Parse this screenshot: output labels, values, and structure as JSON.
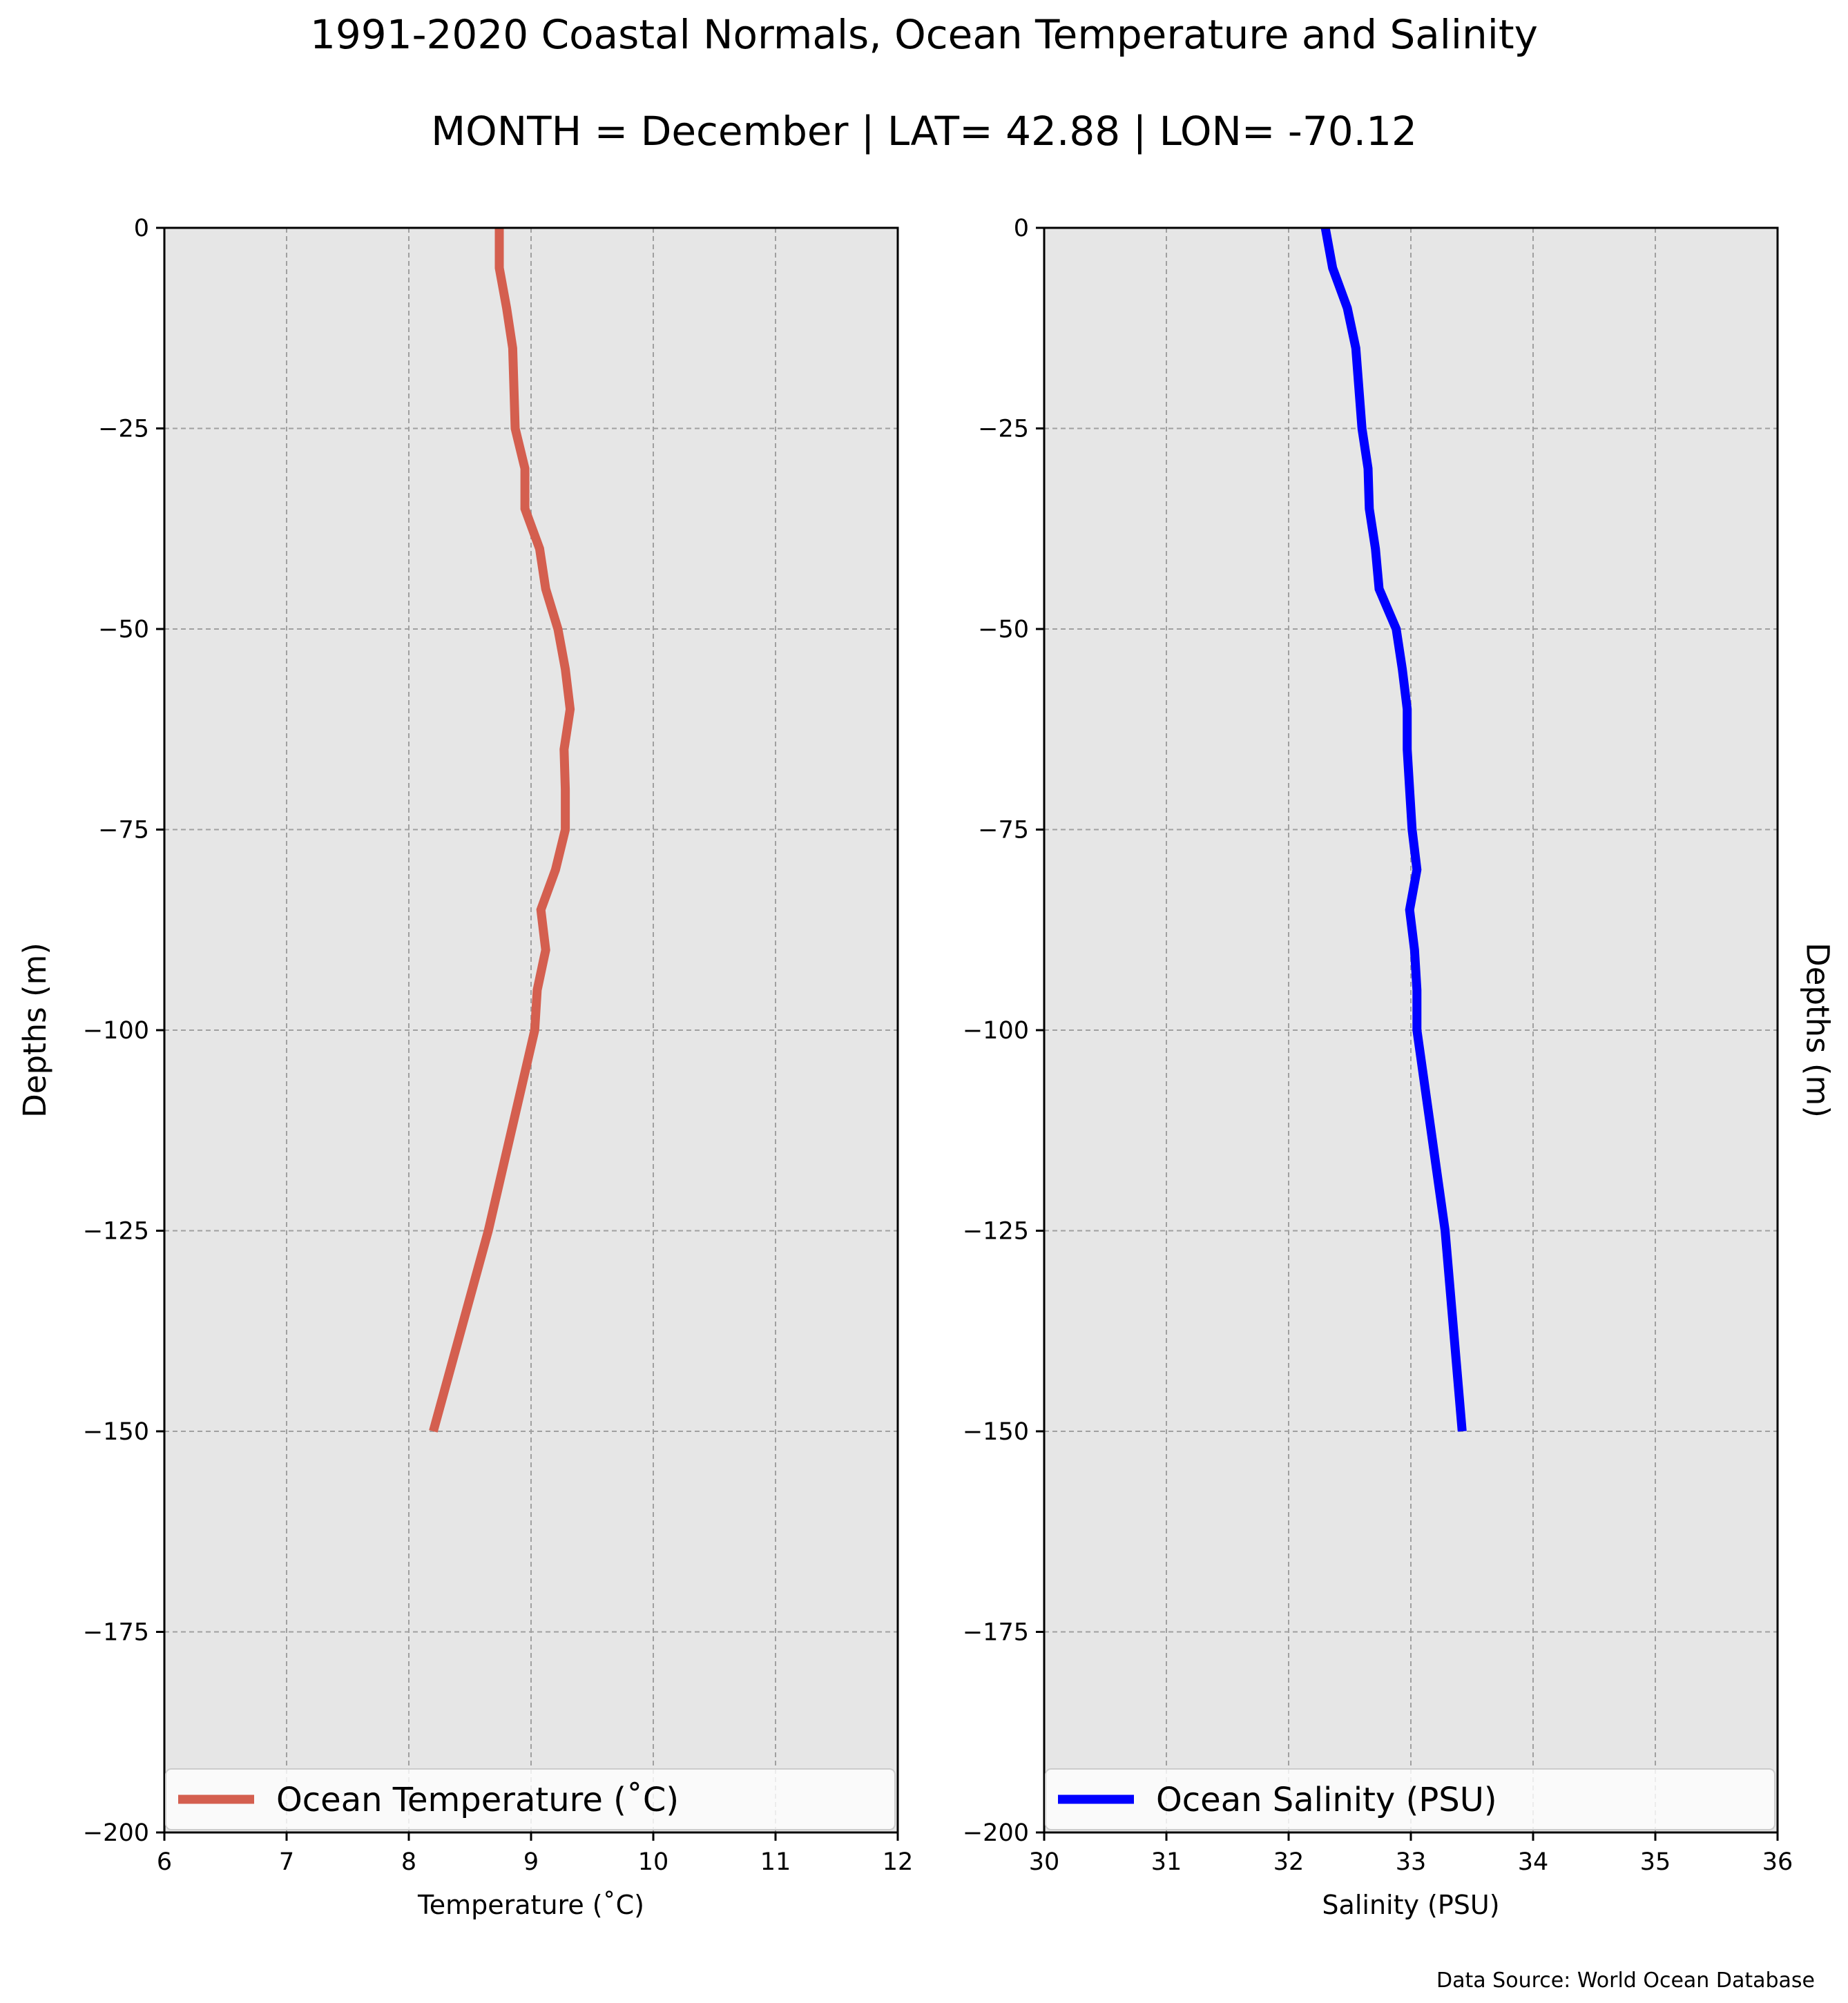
{
  "figure": {
    "title_line1": "1991-2020 Coastal Normals, Ocean Temperature and Salinity",
    "title_line2": "MONTH = December | LAT= 42.88 | LON= -70.12",
    "source": "Data Source: World Ocean Database"
  },
  "chart_data": [
    {
      "type": "line",
      "xlabel": "Temperature (˚C)",
      "ylabel": "Depths (m)",
      "xlim": [
        6,
        12
      ],
      "ylim": [
        -200,
        0
      ],
      "xticks": [
        "6",
        "7",
        "8",
        "9",
        "10",
        "11",
        "12"
      ],
      "yticks": [
        "0",
        "−25",
        "−50",
        "−75",
        "−100",
        "−125",
        "−150",
        "−175",
        "−200"
      ],
      "grid": true,
      "background": "#e6e6e6",
      "legend_position": "bottom",
      "series": [
        {
          "name": "Ocean Temperature (˚C)",
          "color": "#d45f4f",
          "x": [
            8.74,
            8.74,
            8.8,
            8.85,
            8.87,
            8.95,
            8.95,
            9.07,
            9.12,
            9.22,
            9.28,
            9.32,
            9.27,
            9.28,
            9.28,
            9.2,
            9.08,
            9.12,
            9.05,
            9.03,
            8.65,
            8.2
          ],
          "y": [
            0,
            -5,
            -10,
            -15,
            -25,
            -30,
            -35,
            -40,
            -45,
            -50,
            -55,
            -60,
            -65,
            -70,
            -75,
            -80,
            -85,
            -90,
            -95,
            -100,
            -125,
            -150
          ]
        }
      ]
    },
    {
      "type": "line",
      "xlabel": "Salinity (PSU)",
      "ylabel": "Depths (m)",
      "xlim": [
        30,
        36
      ],
      "ylim": [
        -200,
        0
      ],
      "xticks": [
        "30",
        "31",
        "32",
        "33",
        "34",
        "35",
        "36"
      ],
      "yticks": [
        "0",
        "−25",
        "−50",
        "−75",
        "−100",
        "−125",
        "−150",
        "−175",
        "−200"
      ],
      "grid": true,
      "background": "#e6e6e6",
      "legend_position": "bottom",
      "series": [
        {
          "name": "Ocean Salinity (PSU)",
          "color": "#0000ff",
          "x": [
            32.3,
            32.36,
            32.48,
            32.55,
            32.6,
            32.65,
            32.66,
            32.71,
            32.74,
            32.88,
            32.93,
            32.97,
            32.97,
            32.99,
            33.01,
            33.05,
            32.99,
            33.03,
            33.05,
            33.05,
            33.28,
            33.42
          ],
          "y": [
            0,
            -5,
            -10,
            -15,
            -25,
            -30,
            -35,
            -40,
            -45,
            -50,
            -55,
            -60,
            -65,
            -70,
            -75,
            -80,
            -85,
            -90,
            -95,
            -100,
            -125,
            -150
          ]
        }
      ]
    }
  ]
}
